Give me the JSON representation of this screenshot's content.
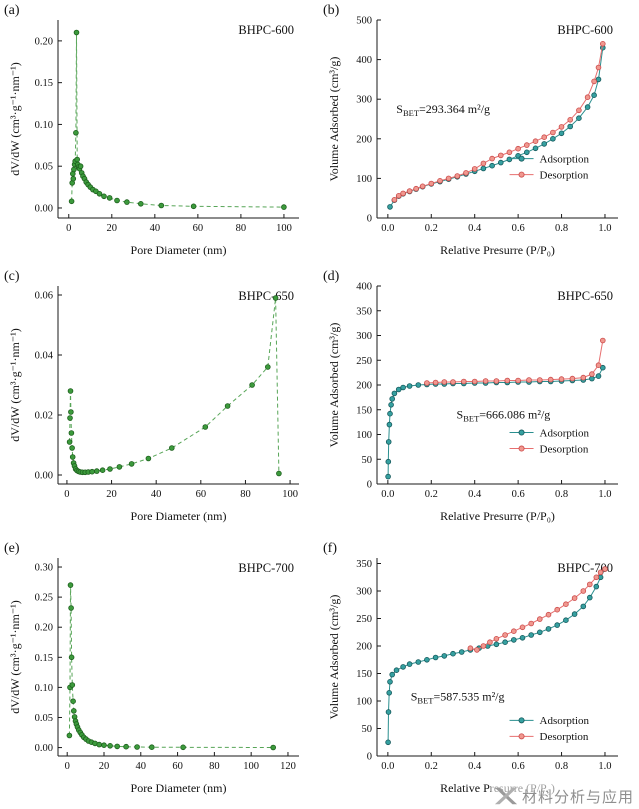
{
  "watermark": {
    "text": "材料分析与应用",
    "logo": "x-ribbon-logo",
    "color": "#8f8f8f"
  },
  "chart_data": [
    {
      "panel_label": "(a)",
      "sample": "BHPC-600",
      "type": "scatter",
      "xlabel": "Pore Diameter (nm)",
      "ylabel": "dV/dW (cm³·g⁻¹·nm⁻¹)",
      "xlim": [
        -5,
        107
      ],
      "ylim": [
        -0.012,
        0.225
      ],
      "xticks": [
        0,
        20,
        40,
        60,
        80,
        100
      ],
      "xtick_labels": [
        "0",
        "20",
        "40",
        "60",
        "80",
        "100"
      ],
      "yticks": [
        0,
        0.05,
        0.1,
        0.15,
        0.2
      ],
      "ytick_labels": [
        "0.00",
        "0.05",
        "0.10",
        "0.15",
        "0.20"
      ],
      "series": [
        {
          "name": "dV/dW",
          "line_color": "#57a557",
          "marker_fill": "#3c9a3c",
          "marker_edge": "#1c5e1c",
          "dash": true,
          "x": [
            1.3,
            1.6,
            1.9,
            2.1,
            2.4,
            2.7,
            3.0,
            3.3,
            3.6,
            3.9,
            4.2,
            4.6,
            5.0,
            5.5,
            6.0,
            6.6,
            7.3,
            8.1,
            9.0,
            10.0,
            11.2,
            12.6,
            14.3,
            16.4,
            19.0,
            22.4,
            27.0,
            33.5,
            43.0,
            58.0,
            100.0
          ],
          "y": [
            0.008,
            0.03,
            0.041,
            0.035,
            0.046,
            0.052,
            0.056,
            0.09,
            0.21,
            0.058,
            0.052,
            0.049,
            0.047,
            0.05,
            0.042,
            0.038,
            0.035,
            0.031,
            0.028,
            0.025,
            0.022,
            0.02,
            0.017,
            0.014,
            0.012,
            0.009,
            0.007,
            0.005,
            0.003,
            0.002,
            0.001
          ]
        }
      ]
    },
    {
      "panel_label": "(b)",
      "sample": "BHPC-600",
      "type": "line-scatter",
      "xlabel": "Relative Presurre (P/P₀)",
      "ylabel": "Volume Adsorbed (cm³/g)",
      "xlim": [
        -0.05,
        1.06
      ],
      "ylim": [
        0,
        500
      ],
      "xticks": [
        0,
        0.2,
        0.4,
        0.6,
        0.8,
        1.0
      ],
      "xtick_labels": [
        "0.0",
        "0.2",
        "0.4",
        "0.6",
        "0.8",
        "1.0"
      ],
      "yticks": [
        0,
        100,
        200,
        300,
        400,
        500
      ],
      "ytick_labels": [
        "0",
        "100",
        "200",
        "300",
        "400",
        "500"
      ],
      "annotation": {
        "pre": "S",
        "sub": "BET",
        "post": "=293.364 m²/g",
        "fx": 0.08,
        "fy": 0.47
      },
      "legend": {
        "fx": 0.55,
        "fy": 0.7
      },
      "series": [
        {
          "name": "Adsorption",
          "line_color": "#2a8f8f",
          "marker_fill": "#35a0a0",
          "marker_edge": "#16595c",
          "dash": false,
          "x": [
            0.01,
            0.03,
            0.05,
            0.07,
            0.1,
            0.13,
            0.16,
            0.2,
            0.24,
            0.28,
            0.32,
            0.36,
            0.4,
            0.44,
            0.48,
            0.52,
            0.56,
            0.6,
            0.64,
            0.68,
            0.72,
            0.76,
            0.8,
            0.84,
            0.88,
            0.92,
            0.95,
            0.97,
            0.99
          ],
          "y": [
            28,
            45,
            55,
            61,
            67,
            73,
            79,
            86,
            92,
            98,
            104,
            111,
            118,
            125,
            132,
            140,
            148,
            157,
            166,
            176,
            187,
            200,
            214,
            231,
            252,
            280,
            310,
            350,
            430
          ]
        },
        {
          "name": "Desorption",
          "line_color": "#e76f6f",
          "marker_fill": "#f0988f",
          "marker_edge": "#cc4b4b",
          "dash": false,
          "x": [
            0.99,
            0.97,
            0.95,
            0.92,
            0.88,
            0.84,
            0.8,
            0.76,
            0.72,
            0.68,
            0.64,
            0.6,
            0.56,
            0.52,
            0.48,
            0.44,
            0.4,
            0.36,
            0.32,
            0.28,
            0.24,
            0.2,
            0.16,
            0.13,
            0.1,
            0.07,
            0.05,
            0.03
          ],
          "y": [
            440,
            380,
            345,
            305,
            272,
            248,
            230,
            216,
            204,
            194,
            184,
            175,
            166,
            158,
            150,
            138,
            124,
            114,
            106,
            100,
            94,
            87,
            80,
            74,
            68,
            62,
            56,
            46
          ]
        }
      ]
    },
    {
      "panel_label": "(c)",
      "sample": "BHPC-650",
      "type": "scatter",
      "xlabel": "Pore Diameter (nm)",
      "ylabel": "dV/dW (cm³·g⁻¹·nm⁻¹)",
      "xlim": [
        -4,
        104
      ],
      "ylim": [
        -0.003,
        0.063
      ],
      "xticks": [
        0,
        20,
        40,
        60,
        80,
        100
      ],
      "xtick_labels": [
        "0",
        "20",
        "40",
        "60",
        "80",
        "100"
      ],
      "yticks": [
        0,
        0.02,
        0.04,
        0.06
      ],
      "ytick_labels": [
        "0.00",
        "0.02",
        "0.04",
        "0.06"
      ],
      "series": [
        {
          "name": "dV/dW",
          "line_color": "#57a557",
          "marker_fill": "#3c9a3c",
          "marker_edge": "#1c5e1c",
          "dash": true,
          "x": [
            1.2,
            1.4,
            1.6,
            1.8,
            2.0,
            2.3,
            2.6,
            3.0,
            3.4,
            3.9,
            4.5,
            5.2,
            6.0,
            7.0,
            8.2,
            9.6,
            11.3,
            13.4,
            16.0,
            19.3,
            23.5,
            29.0,
            36.5,
            47.0,
            62.0,
            72.0,
            83.0,
            90.0,
            93.5,
            95.0
          ],
          "y": [
            0.011,
            0.019,
            0.028,
            0.021,
            0.014,
            0.009,
            0.006,
            0.004,
            0.003,
            0.002,
            0.0015,
            0.0012,
            0.001,
            0.0009,
            0.0009,
            0.001,
            0.0011,
            0.0013,
            0.0016,
            0.002,
            0.0027,
            0.0037,
            0.0055,
            0.009,
            0.016,
            0.023,
            0.03,
            0.036,
            0.059,
            0.0005
          ]
        }
      ]
    },
    {
      "panel_label": "(d)",
      "sample": "BHPC-650",
      "type": "line-scatter",
      "xlabel": "Relative Presurre (P/P₀)",
      "ylabel": "Volume Adsorbed (cm³/g)",
      "xlim": [
        -0.05,
        1.06
      ],
      "ylim": [
        0,
        400
      ],
      "xticks": [
        0,
        0.2,
        0.4,
        0.6,
        0.8,
        1.0
      ],
      "xtick_labels": [
        "0.0",
        "0.2",
        "0.4",
        "0.6",
        "0.8",
        "1.0"
      ],
      "yticks": [
        0,
        50,
        100,
        150,
        200,
        250,
        300,
        350,
        400
      ],
      "ytick_labels": [
        "0",
        "50",
        "100",
        "150",
        "200",
        "250",
        "300",
        "350",
        "400"
      ],
      "annotation": {
        "pre": "S",
        "sub": "BET",
        "post": "=666.086 m²/g",
        "fx": 0.33,
        "fy": 0.67
      },
      "legend": {
        "fx": 0.55,
        "fy": 0.74
      },
      "series": [
        {
          "name": "Adsorption",
          "line_color": "#2a8f8f",
          "marker_fill": "#35a0a0",
          "marker_edge": "#16595c",
          "dash": false,
          "x": [
            0.001,
            0.002,
            0.004,
            0.007,
            0.01,
            0.015,
            0.02,
            0.03,
            0.05,
            0.07,
            0.1,
            0.14,
            0.18,
            0.22,
            0.26,
            0.3,
            0.35,
            0.4,
            0.45,
            0.5,
            0.55,
            0.6,
            0.65,
            0.7,
            0.75,
            0.8,
            0.85,
            0.9,
            0.94,
            0.97,
            0.99
          ],
          "y": [
            15,
            45,
            85,
            120,
            142,
            160,
            172,
            183,
            191,
            195,
            198,
            200,
            201,
            202,
            202,
            203,
            203,
            204,
            204,
            205,
            205,
            206,
            206,
            207,
            207,
            208,
            209,
            210,
            213,
            218,
            235
          ]
        },
        {
          "name": "Desorption",
          "line_color": "#e76f6f",
          "marker_fill": "#f0988f",
          "marker_edge": "#cc4b4b",
          "dash": false,
          "x": [
            0.99,
            0.97,
            0.94,
            0.9,
            0.85,
            0.8,
            0.75,
            0.7,
            0.65,
            0.6,
            0.55,
            0.5,
            0.45,
            0.4,
            0.35,
            0.3,
            0.26,
            0.22,
            0.18
          ],
          "y": [
            290,
            240,
            222,
            215,
            213,
            212,
            211,
            210,
            210,
            209,
            209,
            208,
            208,
            207,
            207,
            206,
            206,
            205,
            204
          ]
        }
      ]
    },
    {
      "panel_label": "(e)",
      "sample": "BHPC-700",
      "type": "scatter",
      "xlabel": "Pore Diameter (nm)",
      "ylabel": "dV/dW (cm³·g⁻¹·nm⁻¹)",
      "xlim": [
        -5,
        126
      ],
      "ylim": [
        -0.014,
        0.315
      ],
      "xticks": [
        0,
        20,
        40,
        60,
        80,
        100,
        120
      ],
      "xtick_labels": [
        "0",
        "20",
        "40",
        "60",
        "80",
        "100",
        "120"
      ],
      "yticks": [
        0,
        0.05,
        0.1,
        0.15,
        0.2,
        0.25,
        0.3
      ],
      "ytick_labels": [
        "0.00",
        "0.05",
        "0.10",
        "0.15",
        "0.20",
        "0.25",
        "0.30"
      ],
      "series": [
        {
          "name": "dV/dW",
          "line_color": "#57a557",
          "marker_fill": "#3c9a3c",
          "marker_edge": "#1c5e1c",
          "dash": true,
          "x": [
            1.2,
            1.5,
            1.8,
            2.1,
            2.4,
            2.8,
            3.2,
            3.6,
            4.0,
            4.5,
            5.0,
            5.6,
            6.3,
            7.1,
            8.0,
            9.0,
            10.2,
            11.6,
            13.2,
            15.1,
            17.4,
            20.0,
            23.3,
            27.2,
            32.0,
            38.0,
            46.0,
            63.0,
            112.0
          ],
          "y": [
            0.02,
            0.1,
            0.27,
            0.232,
            0.15,
            0.104,
            0.077,
            0.061,
            0.051,
            0.044,
            0.039,
            0.034,
            0.029,
            0.025,
            0.021,
            0.017,
            0.014,
            0.011,
            0.009,
            0.007,
            0.005,
            0.004,
            0.003,
            0.002,
            0.0015,
            0.001,
            0.0007,
            0.0004,
            0.0002
          ]
        }
      ]
    },
    {
      "panel_label": "(f)",
      "sample": "BHPC-700",
      "type": "line-scatter",
      "xlabel": "Relative Presurre (P/P₀)",
      "ylabel": "Volume Adsorbed (cm³/g)",
      "xlim": [
        -0.05,
        1.06
      ],
      "ylim": [
        0,
        360
      ],
      "xticks": [
        0,
        0.2,
        0.4,
        0.6,
        0.8,
        1.0
      ],
      "xtick_labels": [
        "0.0",
        "0.2",
        "0.4",
        "0.6",
        "0.8",
        "1.0"
      ],
      "yticks": [
        0,
        50,
        100,
        150,
        200,
        250,
        300,
        350
      ],
      "ytick_labels": [
        "0",
        "50",
        "100",
        "150",
        "200",
        "250",
        "300",
        "350"
      ],
      "annotation": {
        "pre": "S",
        "sub": "BET",
        "post": "=587.535 m²/g",
        "fx": 0.14,
        "fy": 0.72
      },
      "legend": {
        "fx": 0.55,
        "fy": 0.82
      },
      "series": [
        {
          "name": "Adsorption",
          "line_color": "#2a8f8f",
          "marker_fill": "#35a0a0",
          "marker_edge": "#16595c",
          "dash": false,
          "x": [
            0.001,
            0.003,
            0.006,
            0.01,
            0.02,
            0.04,
            0.07,
            0.1,
            0.14,
            0.18,
            0.22,
            0.26,
            0.3,
            0.34,
            0.38,
            0.42,
            0.46,
            0.5,
            0.54,
            0.58,
            0.62,
            0.66,
            0.7,
            0.74,
            0.78,
            0.82,
            0.86,
            0.9,
            0.93,
            0.96,
            0.98,
            1.0
          ],
          "y": [
            25,
            80,
            115,
            135,
            148,
            156,
            162,
            167,
            171,
            175,
            179,
            182,
            186,
            189,
            193,
            196,
            200,
            203,
            207,
            211,
            215,
            220,
            225,
            231,
            238,
            247,
            258,
            272,
            288,
            308,
            325,
            340
          ]
        },
        {
          "name": "Desorption",
          "line_color": "#e76f6f",
          "marker_fill": "#f0988f",
          "marker_edge": "#cc4b4b",
          "dash": false,
          "x": [
            1.0,
            0.98,
            0.96,
            0.93,
            0.9,
            0.86,
            0.82,
            0.78,
            0.74,
            0.7,
            0.66,
            0.62,
            0.58,
            0.54,
            0.5,
            0.47,
            0.44,
            0.41,
            0.38
          ],
          "y": [
            340,
            334,
            325,
            312,
            300,
            287,
            276,
            266,
            257,
            249,
            241,
            234,
            227,
            220,
            213,
            207,
            200,
            193,
            196
          ]
        }
      ]
    }
  ]
}
